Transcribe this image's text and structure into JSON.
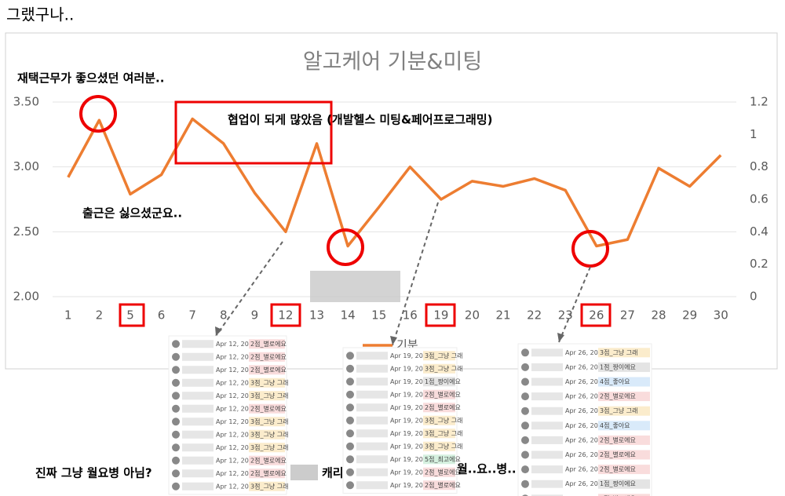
{
  "heading": "그랬구나..",
  "chart_data": {
    "type": "line",
    "title": "알고케어 기분&미팅",
    "categories": [
      "1",
      "2",
      "5",
      "6",
      "7",
      "8",
      "9",
      "12",
      "13",
      "14",
      "15",
      "16",
      "19",
      "20",
      "21",
      "22",
      "23",
      "26",
      "27",
      "28",
      "29",
      "30"
    ],
    "series": [
      {
        "name": "기분",
        "color": "#ed7d31",
        "values": [
          2.92,
          3.36,
          2.79,
          2.94,
          3.37,
          3.18,
          2.8,
          2.5,
          3.18,
          2.39,
          2.69,
          3.0,
          2.75,
          2.89,
          2.85,
          2.91,
          2.82,
          2.39,
          2.44,
          2.99,
          2.85,
          3.09
        ]
      }
    ],
    "ylim": [
      2.0,
      3.5
    ],
    "yticks": [
      {
        "value": 2.0,
        "label": "2.00"
      },
      {
        "value": 2.5,
        "label": "2.50"
      },
      {
        "value": 3.0,
        "label": "3.00"
      },
      {
        "value": 3.5,
        "label": "3.50"
      }
    ],
    "y2lim": [
      0,
      1.2
    ],
    "y2ticks": [
      0,
      0.2,
      0.4,
      0.6,
      0.8,
      1,
      1.2
    ],
    "grid": true,
    "annotations": [
      "재택근무가 좋으셨던 여러분..",
      "협업이 되게 많았음 (개발헬스 미팅&페어프로그래밍)",
      "출근은 싫으셨군요..",
      "진짜 그냥 월요병 아님?",
      "캐리",
      "월..요..병.."
    ],
    "panels": [
      {
        "date": "Apr 12, 2021",
        "tags": [
          "2점_별로에요",
          "2점_별로에요",
          "2점_별로에요",
          "3점_그냥 그래",
          "3점_그냥 그래",
          "2점_별로에요",
          "3점_그냥 그래",
          "3점_그냥 그래",
          "3점_그냥 그래",
          "2점_별로에요",
          "2점_별로에요",
          "3점_그냥 그래"
        ]
      },
      {
        "date": "Apr 19, 2021",
        "tags": [
          "3점_그냥 그래",
          "3점_그냥 그래",
          "1점_짱이에요",
          "2점_별로에요",
          "2점_별로에요",
          "3점_그냥 그래",
          "3점_그냥 그래",
          "3점_그냥 그래",
          "5점_최고에요",
          "2점_별로에요",
          "2점_별로에요"
        ]
      },
      {
        "date": "Apr 26, 2021",
        "tags": [
          "3점_그냥 그래",
          "1점_짱이에요",
          "4점_좋아요",
          "2점_별로에요",
          "3점_그냥 그래",
          "4점_좋아요",
          "2점_별로에요",
          "2점_별로에요",
          "2점_별로에요",
          "1점_짱이에요",
          "2점_별로에요"
        ]
      }
    ]
  }
}
